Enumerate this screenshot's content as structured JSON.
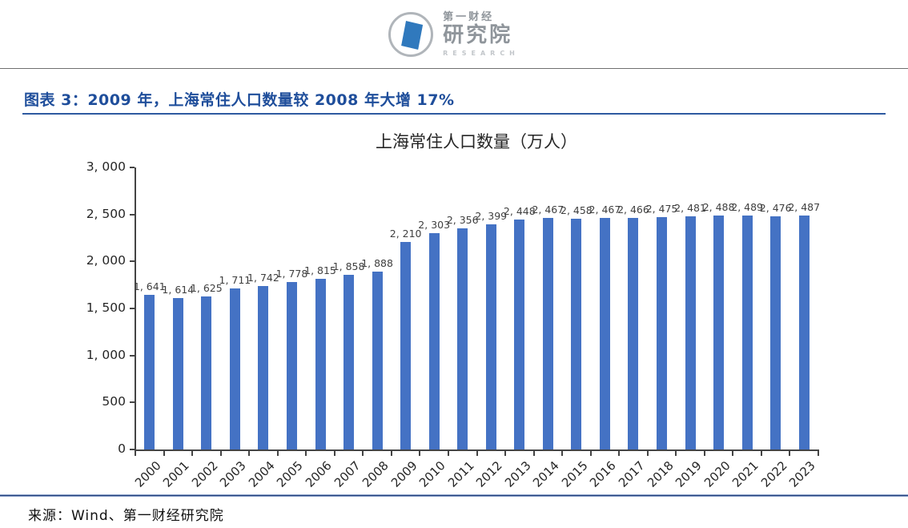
{
  "header": {
    "logo": {
      "line1": "第一财经",
      "line2": "研究院",
      "line3": "RESEARCH"
    }
  },
  "figure": {
    "caption": "图表 3：2009 年，上海常住人口数量较 2008 年大增 17%",
    "source": "来源：Wind、第一财经研究院"
  },
  "chart_data": {
    "type": "bar",
    "title": "上海常住人口数量（万人）",
    "categories": [
      "2000",
      "2001",
      "2002",
      "2003",
      "2004",
      "2005",
      "2006",
      "2007",
      "2008",
      "2009",
      "2010",
      "2011",
      "2012",
      "2013",
      "2014",
      "2015",
      "2016",
      "2017",
      "2018",
      "2019",
      "2020",
      "2021",
      "2022",
      "2023"
    ],
    "values": [
      1641,
      1614,
      1625,
      1711,
      1742,
      1778,
      1815,
      1858,
      1888,
      2210,
      2303,
      2356,
      2399,
      2448,
      2467,
      2458,
      2467,
      2466,
      2475,
      2481,
      2488,
      2489,
      2476,
      2487
    ],
    "value_labels": [
      "1, 641",
      "1, 614",
      "1, 625",
      "1, 711",
      "1, 742",
      "1, 778",
      "1, 815",
      "1, 858",
      "1, 888",
      "2, 210",
      "2, 303",
      "2, 356",
      "2, 399",
      "2, 448",
      "2, 467",
      "2, 458",
      "2, 467",
      "2, 466",
      "2, 475",
      "2, 481",
      "2, 488",
      "2, 489",
      "2, 476",
      "2, 487"
    ],
    "xlabel": "",
    "ylabel": "",
    "ylim": [
      0,
      3000
    ],
    "y_ticks": [
      {
        "value": 0,
        "label": "0"
      },
      {
        "value": 500,
        "label": "500"
      },
      {
        "value": 1000,
        "label": "1, 000"
      },
      {
        "value": 1500,
        "label": "1, 500"
      },
      {
        "value": 2000,
        "label": "2, 000"
      },
      {
        "value": 2500,
        "label": "2, 500"
      },
      {
        "value": 3000,
        "label": "3, 000"
      }
    ],
    "grid": false,
    "legend": "none",
    "bar_color": "#4472C4"
  }
}
